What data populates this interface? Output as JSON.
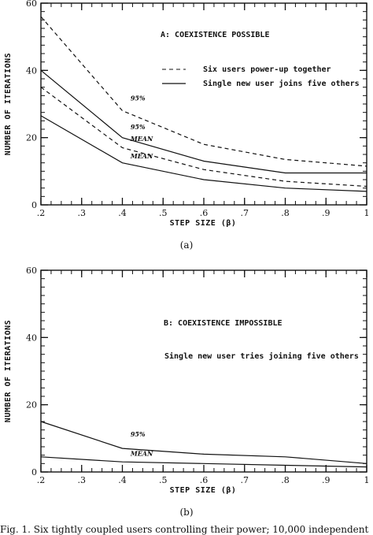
{
  "chart_data": [
    {
      "type": "line",
      "panel_label": "(a)",
      "title": "A: COEXISTENCE POSSIBLE",
      "xlabel": "STEP SIZE (β)",
      "ylabel": "NUMBER OF ITERATIONS",
      "xlim": [
        0.2,
        1.0
      ],
      "ylim": [
        0,
        60
      ],
      "xticks": [
        ".2",
        ".3",
        ".4",
        ".5",
        ".6",
        ".7",
        ".8",
        ".9",
        "1"
      ],
      "xtick_values": [
        0.2,
        0.3,
        0.4,
        0.5,
        0.6,
        0.7,
        0.8,
        0.9,
        1.0
      ],
      "yticks": [
        "0",
        "20",
        "40",
        "60"
      ],
      "ytick_values": [
        0,
        20,
        40,
        60
      ],
      "legend": [
        {
          "label": "Six users power-up together",
          "style": "dashed"
        },
        {
          "label": "Single new user joins five others",
          "style": "solid"
        }
      ],
      "series": [
        {
          "style": "dashed",
          "x": [
            0.2,
            0.4,
            0.6,
            0.8,
            1.0
          ],
          "y": [
            56,
            28,
            18,
            13.5,
            11.5
          ]
        },
        {
          "style": "dashed",
          "x": [
            0.2,
            0.4,
            0.6,
            0.8,
            1.0
          ],
          "y": [
            35,
            17,
            10.5,
            7,
            5.5
          ]
        },
        {
          "style": "solid",
          "x": [
            0.2,
            0.4,
            0.6,
            0.8,
            1.0
          ],
          "y": [
            40,
            20,
            13,
            9.5,
            9.5
          ]
        },
        {
          "style": "solid",
          "x": [
            0.2,
            0.4,
            0.6,
            0.8,
            1.0
          ],
          "y": [
            26.5,
            12.5,
            7.5,
            5,
            4
          ]
        }
      ],
      "annotations": [
        {
          "text": "95%",
          "x": 0.42,
          "y": 31
        },
        {
          "text": "95%",
          "x": 0.42,
          "y": 22.5
        },
        {
          "text": "MEAN",
          "x": 0.42,
          "y": 19
        },
        {
          "text": "MEAN",
          "x": 0.42,
          "y": 13.8
        }
      ]
    },
    {
      "type": "line",
      "panel_label": "(b)",
      "title": "B: COEXISTENCE IMPOSSIBLE",
      "xlabel": "STEP SIZE (β)",
      "ylabel": "NUMBER OF ITERATIONS",
      "xlim": [
        0.2,
        1.0
      ],
      "ylim": [
        0,
        60
      ],
      "xticks": [
        ".2",
        ".3",
        ".4",
        ".5",
        ".6",
        ".7",
        ".8",
        ".9",
        "1"
      ],
      "xtick_values": [
        0.2,
        0.3,
        0.4,
        0.5,
        0.6,
        0.7,
        0.8,
        0.9,
        1.0
      ],
      "yticks": [
        "0",
        "20",
        "40",
        "60"
      ],
      "ytick_values": [
        0,
        20,
        40,
        60
      ],
      "legend": [
        {
          "label": "Single new user tries joining five others",
          "style": "none"
        }
      ],
      "series": [
        {
          "style": "solid",
          "x": [
            0.2,
            0.4,
            0.6,
            0.8,
            1.0
          ],
          "y": [
            15,
            7,
            5.3,
            4.5,
            2.5
          ]
        },
        {
          "style": "solid",
          "x": [
            0.2,
            0.4,
            0.6,
            0.8,
            1.0
          ],
          "y": [
            4.5,
            3,
            2.5,
            2,
            1.5
          ]
        }
      ],
      "annotations": [
        {
          "text": "95%",
          "x": 0.42,
          "y": 10.5
        },
        {
          "text": "MEAN",
          "x": 0.42,
          "y": 4.8
        }
      ]
    }
  ],
  "caption": "Fig. 1.   Six tightly coupled users controlling their power; 10,000 independent"
}
